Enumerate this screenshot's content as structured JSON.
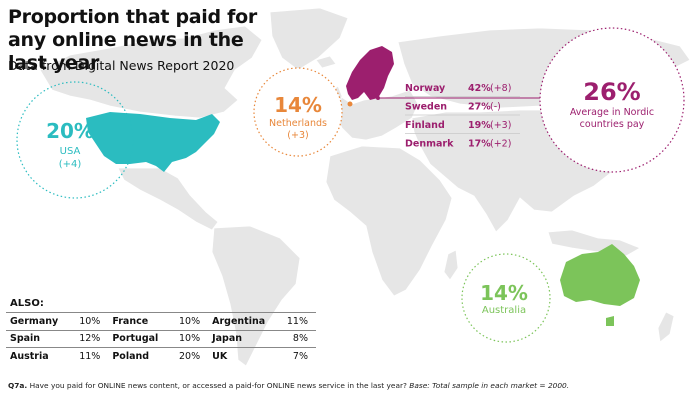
{
  "title": "Proportion that paid for any online news in the last year",
  "subtitle": "Data from Digital News Report 2020",
  "colors": {
    "usa": "#2bbcc0",
    "netherlands": "#e8873a",
    "nordic": "#9c1f6e",
    "australia": "#7cc45a",
    "map": "#e6e6e6"
  },
  "chart_data": {
    "type": "map",
    "callouts": [
      {
        "country": "USA",
        "value_label": "20%",
        "change_label": "(+4)",
        "value": 20,
        "change": 4
      },
      {
        "country": "Netherlands",
        "value_label": "14%",
        "change_label": "(+3)",
        "value": 14,
        "change": 3
      },
      {
        "country": "Australia",
        "value_label": "14%",
        "change_label": "",
        "value": 14,
        "change": null
      },
      {
        "country": "Average in Nordic countries pay",
        "value_label": "26%",
        "change_label": "",
        "value": 26,
        "change": null
      }
    ],
    "nordic": [
      {
        "country": "Norway",
        "value_label": "42%",
        "change_label": "(+8)",
        "value": 42,
        "change": 8
      },
      {
        "country": "Sweden",
        "value_label": "27%",
        "change_label": "(-)",
        "value": 27,
        "change": 0
      },
      {
        "country": "Finland",
        "value_label": "19%",
        "change_label": "(+3)",
        "value": 19,
        "change": 3
      },
      {
        "country": "Denmark",
        "value_label": "17%",
        "change_label": "(+2)",
        "value": 17,
        "change": 2
      }
    ],
    "also_title": "ALSO:",
    "also_rows": [
      [
        {
          "country": "Germany",
          "value": "10%"
        },
        {
          "country": "France",
          "value": "10%"
        },
        {
          "country": "Argentina",
          "value": "11%"
        }
      ],
      [
        {
          "country": "Spain",
          "value": "12%"
        },
        {
          "country": "Portugal",
          "value": "10%"
        },
        {
          "country": "Japan",
          "value": "8%"
        }
      ],
      [
        {
          "country": "Austria",
          "value": "11%"
        },
        {
          "country": "Poland",
          "value": "20%"
        },
        {
          "country": "UK",
          "value": "7%"
        }
      ]
    ]
  },
  "footnote": {
    "code": "Q7a.",
    "question": "Have you paid for ONLINE news content, or accessed a paid-for ONLINE news service in the last year?",
    "base": "Base: Total sample in each market = 2000."
  }
}
